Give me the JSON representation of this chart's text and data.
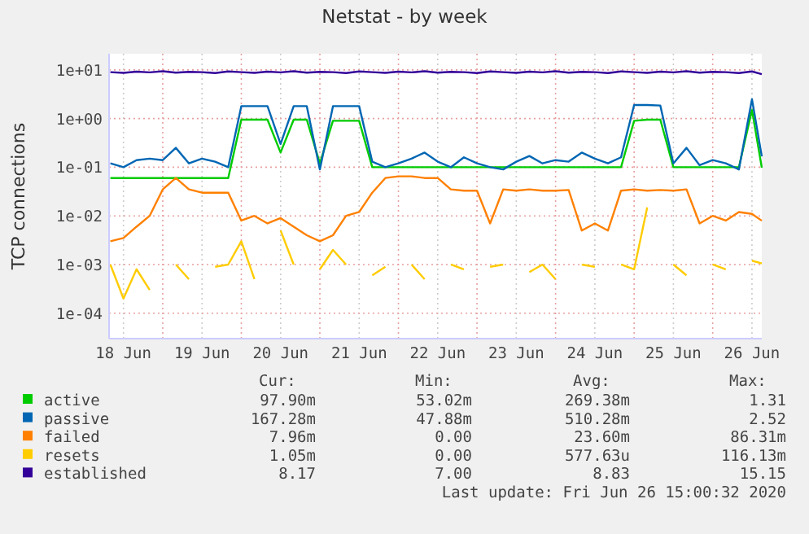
{
  "chart_data": {
    "type": "line",
    "title": "Netstat - by week",
    "ylabel": "TCP connections",
    "log": "y",
    "grid": true,
    "legend": "bottom",
    "line_style": "solid",
    "marker": "none",
    "x": [
      "2020-06-18T08:00",
      "2020-06-18T12:00",
      "2020-06-18T16:00",
      "2020-06-18T20:00",
      "2020-06-19T00:00",
      "2020-06-19T04:00",
      "2020-06-19T08:00",
      "2020-06-19T12:00",
      "2020-06-19T16:00",
      "2020-06-19T20:00",
      "2020-06-20T00:00",
      "2020-06-20T04:00",
      "2020-06-20T08:00",
      "2020-06-20T12:00",
      "2020-06-20T16:00",
      "2020-06-20T20:00",
      "2020-06-21T00:00",
      "2020-06-21T04:00",
      "2020-06-21T08:00",
      "2020-06-21T12:00",
      "2020-06-21T16:00",
      "2020-06-21T20:00",
      "2020-06-22T00:00",
      "2020-06-22T04:00",
      "2020-06-22T08:00",
      "2020-06-22T12:00",
      "2020-06-22T16:00",
      "2020-06-22T20:00",
      "2020-06-23T00:00",
      "2020-06-23T04:00",
      "2020-06-23T08:00",
      "2020-06-23T12:00",
      "2020-06-23T16:00",
      "2020-06-23T20:00",
      "2020-06-24T00:00",
      "2020-06-24T04:00",
      "2020-06-24T08:00",
      "2020-06-24T12:00",
      "2020-06-24T16:00",
      "2020-06-24T20:00",
      "2020-06-25T00:00",
      "2020-06-25T04:00",
      "2020-06-25T08:00",
      "2020-06-25T12:00",
      "2020-06-25T16:00",
      "2020-06-25T20:00",
      "2020-06-26T00:00",
      "2020-06-26T04:00",
      "2020-06-26T08:00",
      "2020-06-26T12:00",
      "2020-06-26T15:00"
    ],
    "xlim": [
      "2020-06-18T07:36",
      "2020-06-26T15:00"
    ],
    "xticks": [
      {
        "value": "2020-06-18T12:00",
        "label": "18 Jun"
      },
      {
        "value": "2020-06-19T00:00",
        "label": null
      },
      {
        "value": "2020-06-19T12:00",
        "label": "19 Jun"
      },
      {
        "value": "2020-06-20T00:00",
        "label": null
      },
      {
        "value": "2020-06-20T12:00",
        "label": "20 Jun"
      },
      {
        "value": "2020-06-21T00:00",
        "label": null
      },
      {
        "value": "2020-06-21T12:00",
        "label": "21 Jun"
      },
      {
        "value": "2020-06-22T00:00",
        "label": null
      },
      {
        "value": "2020-06-22T12:00",
        "label": "22 Jun"
      },
      {
        "value": "2020-06-23T00:00",
        "label": null
      },
      {
        "value": "2020-06-23T12:00",
        "label": "23 Jun"
      },
      {
        "value": "2020-06-24T00:00",
        "label": null
      },
      {
        "value": "2020-06-24T12:00",
        "label": "24 Jun"
      },
      {
        "value": "2020-06-25T00:00",
        "label": null
      },
      {
        "value": "2020-06-25T12:00",
        "label": "25 Jun"
      },
      {
        "value": "2020-06-26T00:00",
        "label": null
      },
      {
        "value": "2020-06-26T12:00",
        "label": "26 Jun"
      }
    ],
    "ylim": [
      3e-05,
      21.5
    ],
    "yticks": [
      {
        "value": 0.0001,
        "label": "1e-04"
      },
      {
        "value": 0.001,
        "label": "1e-03"
      },
      {
        "value": 0.01,
        "label": "1e-02"
      },
      {
        "value": 0.1,
        "label": "1e-01"
      },
      {
        "value": 1,
        "label": "1e+00"
      },
      {
        "value": 10,
        "label": "1e+01"
      }
    ],
    "series": [
      {
        "name": "active",
        "color": "#00cc00",
        "values": [
          0.06,
          0.06,
          0.06,
          0.06,
          0.06,
          0.06,
          0.06,
          0.06,
          0.06,
          0.06,
          0.95,
          0.95,
          0.95,
          0.2,
          0.95,
          0.95,
          0.12,
          0.9,
          0.9,
          0.9,
          0.1,
          0.1,
          0.1,
          0.1,
          0.1,
          0.1,
          0.1,
          0.1,
          0.1,
          0.1,
          0.1,
          0.1,
          0.1,
          0.1,
          0.1,
          0.1,
          0.1,
          0.1,
          0.1,
          0.1,
          0.9,
          0.95,
          0.95,
          0.1,
          0.1,
          0.1,
          0.1,
          0.1,
          0.1,
          1.5,
          0.098
        ]
      },
      {
        "name": "passive",
        "color": "#0066b3",
        "values": [
          0.12,
          0.1,
          0.14,
          0.15,
          0.14,
          0.25,
          0.12,
          0.15,
          0.13,
          0.1,
          1.8,
          1.8,
          1.8,
          0.3,
          1.8,
          1.8,
          0.09,
          1.8,
          1.8,
          1.8,
          0.13,
          0.1,
          0.12,
          0.15,
          0.2,
          0.13,
          0.1,
          0.16,
          0.12,
          0.1,
          0.09,
          0.13,
          0.17,
          0.12,
          0.14,
          0.13,
          0.2,
          0.15,
          0.12,
          0.16,
          1.9,
          1.9,
          1.85,
          0.12,
          0.25,
          0.11,
          0.14,
          0.12,
          0.09,
          2.5,
          0.167
        ]
      },
      {
        "name": "failed",
        "color": "#ff8000",
        "values": [
          0.003,
          0.0035,
          0.006,
          0.01,
          0.035,
          0.06,
          0.035,
          0.03,
          0.03,
          0.03,
          0.008,
          0.01,
          0.007,
          0.009,
          0.006,
          0.004,
          0.003,
          0.004,
          0.01,
          0.012,
          0.03,
          0.06,
          0.065,
          0.065,
          0.06,
          0.06,
          0.035,
          0.033,
          0.033,
          0.007,
          0.035,
          0.033,
          0.035,
          0.033,
          0.033,
          0.034,
          0.005,
          0.007,
          0.005,
          0.033,
          0.035,
          0.033,
          0.034,
          0.033,
          0.035,
          0.007,
          0.01,
          0.008,
          0.012,
          0.011,
          0.00796
        ]
      },
      {
        "name": "resets",
        "color": "#ffcc00",
        "values": [
          0.001,
          0.0002,
          0.0008,
          0.0003,
          null,
          0.001,
          0.0005,
          null,
          0.0009,
          0.001,
          0.003,
          0.0005,
          null,
          0.005,
          0.001,
          null,
          0.0008,
          0.002,
          0.001,
          null,
          0.0006,
          0.0009,
          null,
          0.001,
          0.0005,
          null,
          0.001,
          0.0008,
          null,
          0.0009,
          0.001,
          null,
          0.0007,
          0.001,
          0.0005,
          null,
          0.001,
          0.0009,
          null,
          0.001,
          0.0008,
          0.015,
          null,
          0.001,
          0.0006,
          null,
          0.001,
          0.0008,
          null,
          0.0012,
          0.00105
        ]
      },
      {
        "name": "established",
        "color": "#330099",
        "values": [
          9,
          8.7,
          9.2,
          8.9,
          9.4,
          8.8,
          9.1,
          9,
          8.6,
          9.3,
          9,
          8.7,
          9.2,
          8.9,
          9.4,
          8.8,
          9.1,
          9,
          8.6,
          9.3,
          9,
          8.7,
          9.2,
          8.9,
          9.4,
          8.8,
          9.1,
          9,
          8.6,
          9.3,
          9,
          8.7,
          9.2,
          8.9,
          9.4,
          8.8,
          9.1,
          9,
          8.6,
          9.3,
          9,
          8.7,
          9.2,
          8.9,
          9.4,
          8.8,
          9.1,
          9,
          8.6,
          9.3,
          8.17
        ]
      }
    ],
    "annotations": [
      "Cur:",
      "Min:",
      "Avg:",
      "Max:",
      "97.90m",
      "53.02m",
      "269.38m",
      "1.31",
      "167.28m",
      "47.88m",
      "510.28m",
      "2.52",
      "7.96m",
      "0.00",
      "23.60m",
      "86.31m",
      "1.05m",
      "0.00",
      "577.63u",
      "116.13m",
      "8.17",
      "7.00",
      "8.83",
      "15.15",
      "Last update: Fri Jun 26 15:00:32 2020"
    ]
  }
}
